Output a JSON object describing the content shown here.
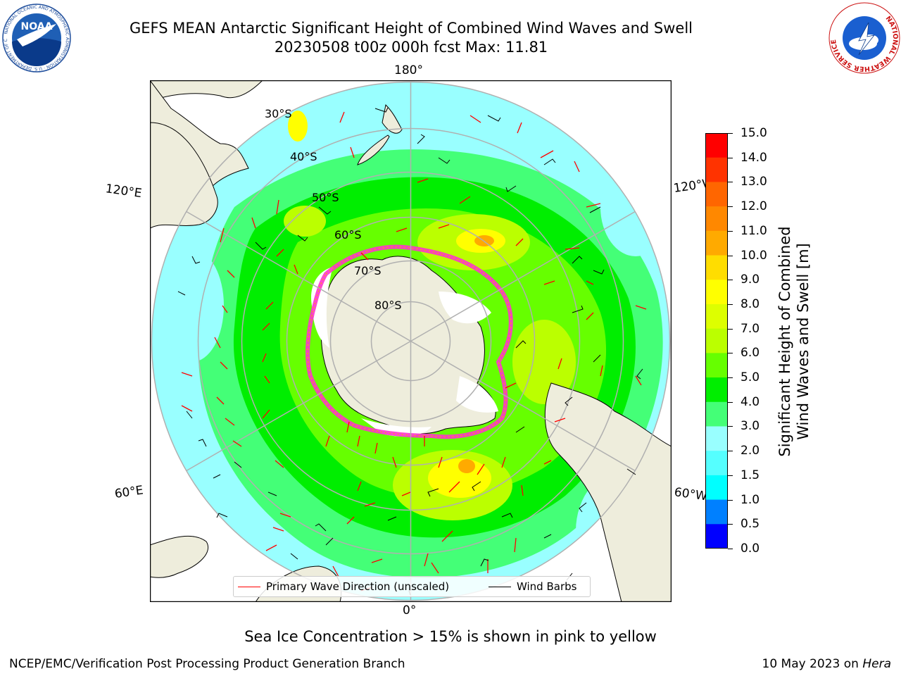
{
  "header": {
    "title_line1": "GEFS MEAN Antarctic Significant Height of Combined Wind Waves and Swell",
    "title_line2": "20230508 t00z 000h fcst   Max: 11.81"
  },
  "logos": {
    "noaa_text": "NOAA",
    "noaa_ring_text": "NATIONAL OCEANIC AND ATMOSPHERIC ADMINISTRATION · U.S. DEPARTMENT OF COMMERCE",
    "nws_ring_text": "NATIONAL WEATHER SERVICE"
  },
  "map": {
    "projection": "south-polar-stereographic",
    "longitude_labels": {
      "top": "180°",
      "bottom": "0°",
      "upper_left": "120°E",
      "upper_right": "120°W",
      "lower_left": "60°E",
      "lower_right": "60°W"
    },
    "latitude_labels": [
      "30°S",
      "40°S",
      "50°S",
      "60°S",
      "70°S",
      "80°S"
    ],
    "colors": {
      "land": "#eeeddc",
      "ice_shelf": "#ffffff",
      "sea_ice_edge": "#ff33cc",
      "graticule": "#b0b0b0",
      "wave_arrow": "#ff0000",
      "wind_barb": "#000000"
    }
  },
  "legend": {
    "primary_wave": "Primary Wave Direction (unscaled)",
    "wind_barbs": "Wind Barbs"
  },
  "colorbar": {
    "label": "Significant Height of Combined\nWind Waves and Swell [m]",
    "label_line1": "Significant Height of Combined",
    "label_line2": "Wind Waves and Swell [m]",
    "ticks": [
      "15.0",
      "14.0",
      "13.0",
      "12.0",
      "11.0",
      "10.0",
      "9.0",
      "8.0",
      "7.0",
      "6.0",
      "5.0",
      "4.0",
      "3.0",
      "2.0",
      "1.5",
      "1.0",
      "0.5",
      "0.0"
    ],
    "colors": [
      "#ff0000",
      "#ff3300",
      "#ff6600",
      "#ff8800",
      "#ffaa00",
      "#ffdd00",
      "#ffff00",
      "#ddff00",
      "#bbff00",
      "#66ff00",
      "#00ee00",
      "#44ff77",
      "#99ffff",
      "#55ffff",
      "#00ffff",
      "#0080ff",
      "#0000ff"
    ]
  },
  "note": "Sea Ice Concentration > 15% is shown in pink to yellow",
  "footer": {
    "left": "NCEP/EMC/Verification Post Processing Product Generation Branch",
    "right_date": "10 May 2023 on ",
    "right_host": "Hera"
  }
}
